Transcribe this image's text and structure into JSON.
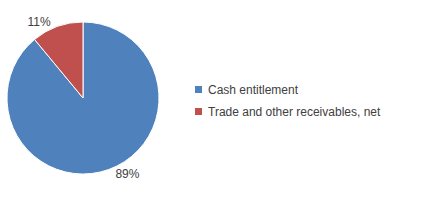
{
  "chart_data": {
    "type": "pie",
    "categories": [
      "Cash entitlement",
      "Trade and other receivables, net"
    ],
    "values": [
      89,
      11
    ],
    "value_labels": [
      "89%",
      "11%"
    ],
    "colors": [
      "#4f81bd",
      "#c0504d"
    ],
    "data_labels": true,
    "legend": "right"
  }
}
